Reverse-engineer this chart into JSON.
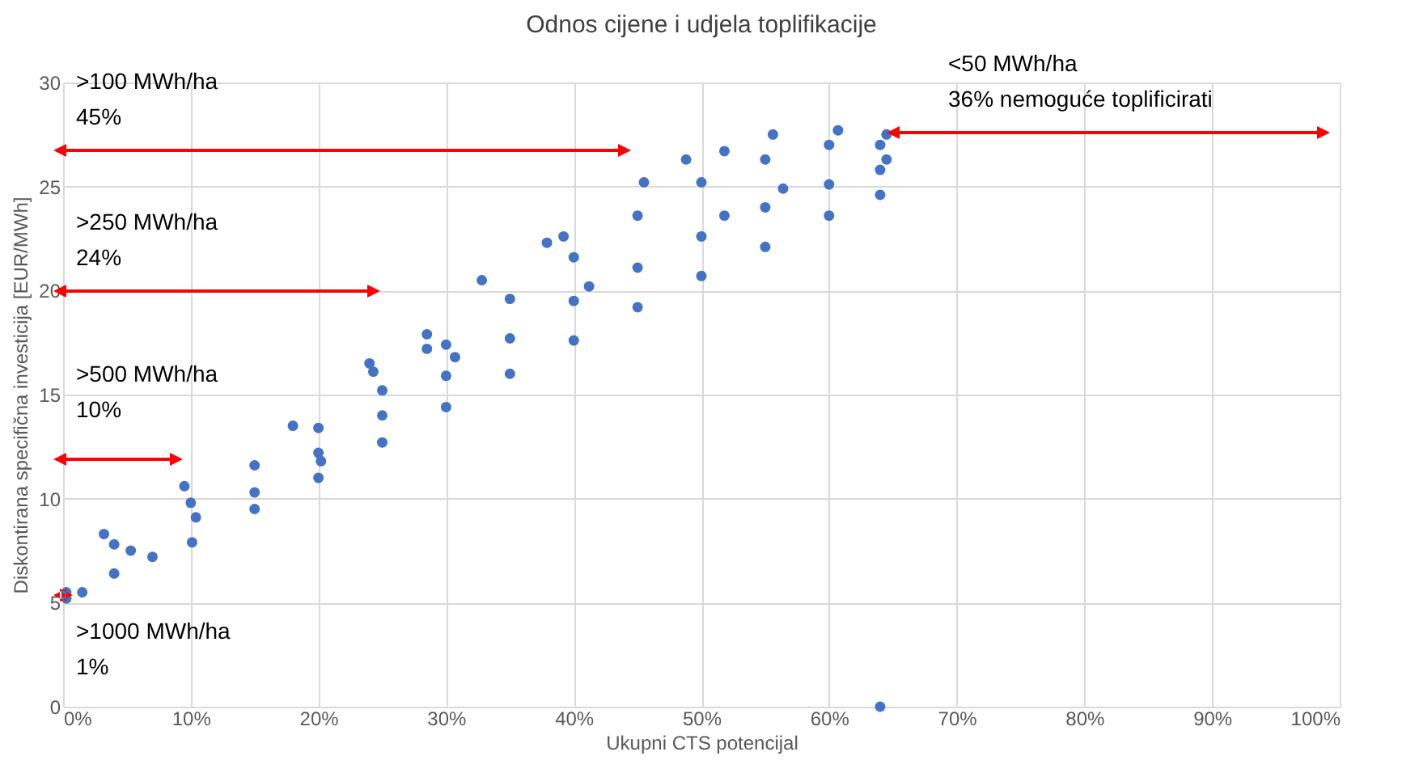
{
  "chart_data": {
    "type": "scatter",
    "title": "Odnos cijene i udjela toplifikacije",
    "xlabel": "Ukupni CTS potencijal",
    "ylabel": "Diskontirana specifična investicija [EUR/MWh]",
    "xlim": [
      0,
      100
    ],
    "ylim": [
      0,
      30
    ],
    "xticks": [
      {
        "value": 0,
        "label": "0%"
      },
      {
        "value": 10,
        "label": "10%"
      },
      {
        "value": 20,
        "label": "20%"
      },
      {
        "value": 30,
        "label": "30%"
      },
      {
        "value": 40,
        "label": "40%"
      },
      {
        "value": 50,
        "label": "50%"
      },
      {
        "value": 60,
        "label": "60%"
      },
      {
        "value": 70,
        "label": "70%"
      },
      {
        "value": 80,
        "label": "80%"
      },
      {
        "value": 90,
        "label": "90%"
      },
      {
        "value": 100,
        "label": "100%"
      }
    ],
    "yticks": [
      0,
      5,
      10,
      15,
      20,
      25,
      30
    ],
    "grid": true,
    "marker": "circle",
    "series": [
      {
        "color": "#4472c4",
        "x": [
          0.25,
          3.2,
          9.5,
          18,
          24.3,
          28.5,
          32.8,
          39.2,
          45.5,
          51.8,
          55.6,
          60.7,
          64.5,
          24,
          28.5,
          37.9,
          48.8,
          0.25,
          5.3,
          10.4,
          20.2,
          30.7,
          41.2,
          51.8,
          56.4,
          64.5,
          4,
          10,
          15,
          20,
          25,
          30,
          35,
          40,
          45,
          50,
          55,
          60,
          64,
          1.5,
          4,
          7,
          10.1,
          15,
          20,
          25,
          30,
          35,
          40,
          45,
          50,
          55,
          60,
          64,
          15,
          20,
          25,
          30,
          35,
          40,
          45,
          50,
          55,
          60,
          64,
          64
        ],
        "values": [
          5.5,
          8.3,
          10.6,
          13.5,
          16.1,
          17.9,
          20.5,
          22.6,
          25.2,
          26.7,
          27.5,
          27.7,
          27.5,
          16.5,
          17.2,
          22.3,
          26.3,
          5.2,
          7.5,
          9.1,
          11.8,
          16.8,
          20.2,
          23.6,
          24.9,
          26.3,
          7.8,
          9.8,
          11.6,
          13.4,
          15.2,
          17.4,
          19.6,
          21.6,
          23.6,
          25.2,
          26.3,
          27,
          27,
          5.5,
          6.4,
          7.2,
          7.9,
          9.5,
          11,
          12.7,
          14.4,
          16,
          17.6,
          19.2,
          20.7,
          22.1,
          23.6,
          24.6,
          10.3,
          12.2,
          14,
          15.9,
          17.7,
          19.5,
          21.1,
          22.6,
          24,
          25.1,
          25.8,
          0
        ]
      }
    ],
    "annotations": [
      ">100 MWh/ha\n45%",
      ">250 MWh/ha\n24%",
      ">500 MWh/ha\n10%",
      ">1000 MWh/ha\n1%",
      "<50 MWh/ha\n36% nemoguće toplificirati"
    ]
  }
}
